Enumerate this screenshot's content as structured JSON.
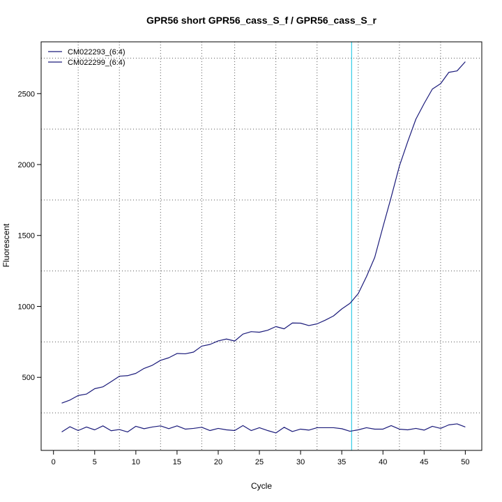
{
  "chart_data": {
    "type": "line",
    "title": "GPR56 short GPR56_cass_S_f / GPR56_cass_S_r",
    "xlabel": "Cycle",
    "ylabel": "Fluorescent",
    "xlim": [
      -1.5,
      52
    ],
    "ylim": [
      -15,
      2865
    ],
    "xticks": [
      0,
      5,
      10,
      15,
      20,
      25,
      30,
      35,
      40,
      45,
      50
    ],
    "yticks": [
      500,
      1000,
      1500,
      2000,
      2500
    ],
    "grid": true,
    "grid_x": [
      3,
      8,
      13,
      18,
      22,
      27,
      32,
      37,
      42,
      47
    ],
    "grid_y": [
      250,
      750,
      1250,
      1750,
      2250,
      2750
    ],
    "legend_position": "top-left",
    "threshold_x": 36.2,
    "threshold_color": "#40d0e8",
    "x": [
      1,
      2,
      3,
      4,
      5,
      6,
      7,
      8,
      9,
      10,
      11,
      12,
      13,
      14,
      15,
      16,
      17,
      18,
      19,
      20,
      21,
      22,
      23,
      24,
      25,
      26,
      27,
      28,
      29,
      30,
      31,
      32,
      33,
      34,
      35,
      36,
      37,
      38,
      39,
      40,
      41,
      42,
      43,
      44,
      45,
      46,
      47,
      48,
      49,
      50
    ],
    "series": [
      {
        "name": "CM022293_(6:4)",
        "color": "#1a1a7a",
        "values": [
          318,
          340,
          372,
          382,
          420,
          433,
          470,
          508,
          512,
          528,
          563,
          585,
          620,
          638,
          668,
          666,
          678,
          720,
          732,
          757,
          770,
          756,
          805,
          822,
          818,
          832,
          858,
          842,
          883,
          882,
          865,
          877,
          903,
          933,
          982,
          1022,
          1090,
          1210,
          1345,
          1560,
          1770,
          1990,
          2160,
          2320,
          2430,
          2532,
          2570,
          2650,
          2660,
          2725
        ]
      },
      {
        "name": "CM022299_(6:4)",
        "color": "#1a1a7a",
        "values": [
          115,
          152,
          125,
          150,
          130,
          158,
          124,
          132,
          115,
          155,
          138,
          150,
          158,
          138,
          158,
          135,
          140,
          148,
          125,
          140,
          130,
          125,
          160,
          125,
          145,
          125,
          108,
          148,
          118,
          135,
          128,
          145,
          145,
          145,
          138,
          120,
          130,
          145,
          135,
          135,
          160,
          135,
          130,
          140,
          128,
          155,
          140,
          165,
          172,
          150
        ]
      }
    ]
  }
}
